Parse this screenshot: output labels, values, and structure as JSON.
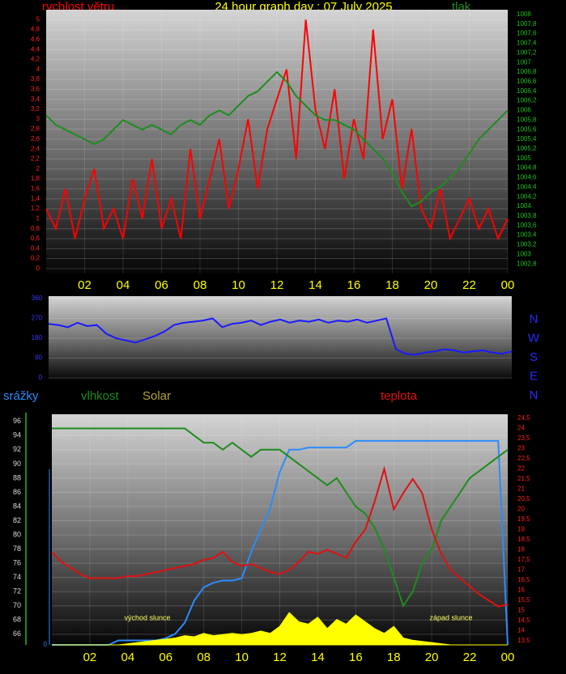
{
  "chart_data": [
    {
      "type": "line",
      "title": "24 hour graph day : 07 July 2025",
      "x": [
        0,
        0.5,
        1,
        1.5,
        2,
        2.5,
        3,
        3.5,
        4,
        4.5,
        5,
        5.5,
        6,
        6.5,
        7,
        7.5,
        8,
        8.5,
        9,
        9.5,
        10,
        10.5,
        11,
        11.5,
        12,
        12.5,
        13,
        13.5,
        14,
        14.5,
        15,
        15.5,
        16,
        16.5,
        17,
        17.5,
        18,
        18.5,
        19,
        19.5,
        20,
        20.5,
        21,
        21.5,
        22,
        22.5,
        23,
        23.5,
        24
      ],
      "xlim": [
        0,
        24
      ],
      "xticks": [
        {
          "value": 2,
          "label": "02"
        },
        {
          "value": 4,
          "label": "04"
        },
        {
          "value": 6,
          "label": "06"
        },
        {
          "value": 8,
          "label": "08"
        },
        10,
        12,
        14,
        16,
        18,
        20,
        22,
        {
          "value": 24,
          "label": "00"
        }
      ],
      "ylim": [
        -0.1,
        5.2
      ],
      "yticks": [
        0,
        {
          "value": 0.2,
          "label": "0,2"
        },
        {
          "value": 0.4,
          "label": "0,4"
        },
        {
          "value": 0.6,
          "label": "0,6"
        },
        {
          "value": 0.8,
          "label": "0,8"
        },
        1,
        {
          "value": 1.2,
          "label": "1,2"
        },
        {
          "value": 1.4,
          "label": "1,4"
        },
        {
          "value": 1.6,
          "label": "1,6"
        },
        {
          "value": 1.8,
          "label": "1,8"
        },
        2,
        {
          "value": 2.2,
          "label": "2,2"
        },
        {
          "value": 2.4,
          "label": "2,4"
        },
        {
          "value": 2.6,
          "label": "2,6"
        },
        {
          "value": 2.8,
          "label": "2,8"
        },
        3,
        {
          "value": 3.2,
          "label": "3,2"
        },
        {
          "value": 3.4,
          "label": "3,4"
        },
        {
          "value": 3.6,
          "label": "3,6"
        },
        {
          "value": 3.8,
          "label": "3,8"
        },
        4,
        {
          "value": 4.2,
          "label": "4,2"
        },
        {
          "value": 4.4,
          "label": "4,4"
        },
        {
          "value": 4.6,
          "label": "4,6"
        },
        {
          "value": 4.8,
          "label": "4,8"
        },
        5
      ],
      "y2lim": [
        1002.6,
        1008.1
      ],
      "y2ticks": [
        {
          "value": 1002.8,
          "label": "1002,8"
        },
        1003,
        {
          "value": 1003.2,
          "label": "1003,2"
        },
        {
          "value": 1003.4,
          "label": "1003,4"
        },
        {
          "value": 1003.6,
          "label": "1003,6"
        },
        {
          "value": 1003.8,
          "label": "1003,8"
        },
        1004,
        {
          "value": 1004.2,
          "label": "1004,2"
        },
        {
          "value": 1004.4,
          "label": "1004,4"
        },
        {
          "value": 1004.6,
          "label": "1004,6"
        },
        {
          "value": 1004.8,
          "label": "1004,8"
        },
        1005,
        {
          "value": 1005.2,
          "label": "1005,2"
        },
        {
          "value": 1005.4,
          "label": "1005,4"
        },
        {
          "value": 1005.6,
          "label": "1005,6"
        },
        {
          "value": 1005.8,
          "label": "1005,8"
        },
        1006,
        {
          "value": 1006.2,
          "label": "1006,2"
        },
        {
          "value": 1006.4,
          "label": "1006,4"
        },
        {
          "value": 1006.6,
          "label": "1006,6"
        },
        {
          "value": 1006.8,
          "label": "1006,8"
        },
        1007,
        {
          "value": 1007.2,
          "label": "1007,2"
        },
        {
          "value": 1007.4,
          "label": "1007,4"
        },
        {
          "value": 1007.6,
          "label": "1007,6"
        },
        {
          "value": 1007.8,
          "label": "1007,8"
        },
        1008
      ],
      "grid": true,
      "series": [
        {
          "name": "rychlost větru",
          "color": "#ff0000",
          "values": [
            1.2,
            0.8,
            1.6,
            0.6,
            1.4,
            2.0,
            0.8,
            1.2,
            0.6,
            1.8,
            1.0,
            2.2,
            0.8,
            1.4,
            0.6,
            2.4,
            1.0,
            1.8,
            2.6,
            1.2,
            2.0,
            3.0,
            1.6,
            2.8,
            3.4,
            4.0,
            2.2,
            5.0,
            3.2,
            2.4,
            3.6,
            1.8,
            3.0,
            2.2,
            4.8,
            2.6,
            3.4,
            1.6,
            2.8,
            1.2,
            0.8,
            1.6,
            0.6,
            1.0,
            1.4,
            0.8,
            1.2,
            0.6,
            1.0
          ]
        },
        {
          "name": "tlak",
          "color": "#1e8c1e",
          "axis": "y2",
          "values": [
            1005.9,
            1005.7,
            1005.6,
            1005.5,
            1005.4,
            1005.3,
            1005.4,
            1005.6,
            1005.8,
            1005.7,
            1005.6,
            1005.7,
            1005.6,
            1005.5,
            1005.7,
            1005.8,
            1005.7,
            1005.9,
            1006.0,
            1005.9,
            1006.1,
            1006.3,
            1006.4,
            1006.6,
            1006.8,
            1006.6,
            1006.3,
            1006.1,
            1005.9,
            1005.8,
            1005.8,
            1005.7,
            1005.6,
            1005.4,
            1005.2,
            1005.0,
            1004.7,
            1004.3,
            1004.0,
            1004.1,
            1004.3,
            1004.4,
            1004.6,
            1004.8,
            1005.1,
            1005.4,
            1005.6,
            1005.8,
            1006.0
          ]
        }
      ]
    },
    {
      "type": "line",
      "x": [
        0,
        0.5,
        1,
        1.5,
        2,
        2.5,
        3,
        3.5,
        4,
        4.5,
        5,
        5.5,
        6,
        6.5,
        7,
        7.5,
        8,
        8.5,
        9,
        9.5,
        10,
        10.5,
        11,
        11.5,
        12,
        12.5,
        13,
        13.5,
        14,
        14.5,
        15,
        15.5,
        16,
        16.5,
        17,
        17.5,
        18,
        18.5,
        19,
        19.5,
        20,
        20.5,
        21,
        21.5,
        22,
        22.5,
        23,
        23.5,
        24
      ],
      "xlim": [
        0,
        24
      ],
      "ylim": [
        -11,
        371
      ],
      "yticks": [
        0,
        90,
        180,
        270,
        360
      ],
      "grid": true,
      "compass": [
        "N",
        "W",
        "S",
        "E",
        "N"
      ],
      "series": [
        {
          "color": "#1a1aff",
          "values": [
            245,
            240,
            230,
            250,
            235,
            240,
            200,
            180,
            170,
            160,
            175,
            190,
            210,
            240,
            250,
            255,
            260,
            270,
            230,
            245,
            250,
            260,
            240,
            255,
            265,
            250,
            260,
            255,
            265,
            250,
            260,
            255,
            265,
            250,
            260,
            270,
            130,
            110,
            105,
            115,
            120,
            130,
            125,
            115,
            120,
            125,
            115,
            110,
            120
          ]
        }
      ]
    },
    {
      "type": "line",
      "x": [
        0,
        0.5,
        1,
        1.5,
        2,
        2.5,
        3,
        3.5,
        4,
        4.5,
        5,
        5.5,
        6,
        6.5,
        7,
        7.5,
        8,
        8.5,
        9,
        9.5,
        10,
        10.5,
        11,
        11.5,
        12,
        12.5,
        13,
        13.5,
        14,
        14.5,
        15,
        15.5,
        16,
        16.5,
        17,
        17.5,
        18,
        18.5,
        19,
        19.5,
        20,
        20.5,
        21,
        21.5,
        22,
        22.5,
        23,
        23.5,
        24
      ],
      "xlim": [
        0,
        24
      ],
      "xticks": [
        {
          "value": 2,
          "label": "02"
        },
        {
          "value": 4,
          "label": "04"
        },
        {
          "value": 6,
          "label": "06"
        },
        {
          "value": 8,
          "label": "08"
        },
        10,
        12,
        14,
        16,
        18,
        20,
        22,
        {
          "value": 24,
          "label": "00"
        }
      ],
      "ylim": [
        64.5,
        97
      ],
      "yticks": [
        66,
        68,
        70,
        72,
        74,
        76,
        78,
        80,
        82,
        84,
        86,
        88,
        90,
        92,
        94,
        96
      ],
      "y2lim": [
        13.3,
        24.7
      ],
      "y2ticks": [
        {
          "value": 13.5,
          "label": "13,5"
        },
        14,
        {
          "value": 14.5,
          "label": "14,5"
        },
        15,
        {
          "value": 15.5,
          "label": "15,5"
        },
        16,
        {
          "value": 16.5,
          "label": "16,5"
        },
        17,
        {
          "value": 17.5,
          "label": "17,5"
        },
        18,
        {
          "value": 18.5,
          "label": "18,5"
        },
        19,
        {
          "value": 19.5,
          "label": "19,5"
        },
        20,
        {
          "value": 20.5,
          "label": "20,5"
        },
        21,
        {
          "value": 21.5,
          "label": "21,5"
        },
        22,
        {
          "value": 22.5,
          "label": "22,5"
        },
        23,
        {
          "value": 23.5,
          "label": "23,5"
        },
        24,
        {
          "value": 24.5,
          "label": "24,5"
        }
      ],
      "y3lim": [
        0,
        10.4
      ],
      "y3ticks": [
        0
      ],
      "y4lim": [
        0,
        100
      ],
      "grid": true,
      "annotations": [
        "východ slunce",
        "západ slunce"
      ],
      "series": [
        {
          "name": "srážky",
          "color": "#2a8cff",
          "axis": "y3",
          "values": [
            0,
            0,
            0,
            0,
            0,
            0,
            0,
            0.2,
            0.2,
            0.2,
            0.2,
            0.2,
            0.3,
            0.5,
            1.0,
            2.0,
            2.6,
            2.8,
            2.9,
            2.9,
            3.0,
            4.2,
            5.2,
            6.2,
            7.8,
            8.8,
            8.8,
            8.9,
            8.9,
            8.9,
            8.9,
            8.9,
            9.2,
            9.2,
            9.2,
            9.2,
            9.2,
            9.2,
            9.2,
            9.2,
            9.2,
            9.2,
            9.2,
            9.2,
            9.2,
            9.2,
            9.2,
            9.2,
            0
          ]
        },
        {
          "name": "vlhkost",
          "color": "#1e8c1e",
          "values": [
            95,
            95,
            95,
            95,
            95,
            95,
            95,
            95,
            95,
            95,
            95,
            95,
            95,
            95,
            95,
            94,
            93,
            93,
            92,
            93,
            92,
            91,
            92,
            92,
            92,
            91,
            90,
            89,
            88,
            87,
            88,
            86,
            84,
            83,
            81,
            78,
            74,
            70,
            72,
            76,
            78,
            82,
            84,
            86,
            88,
            89,
            90,
            91,
            92
          ]
        },
        {
          "name": "Solar",
          "color": "#b4a532",
          "fillcolor": "#ffff00",
          "axis": "y4",
          "area": true,
          "values": [
            0,
            0,
            0,
            0,
            0,
            0,
            0,
            0,
            0.5,
            1,
            1.5,
            2,
            2.5,
            3,
            4,
            3.5,
            5,
            4,
            4.5,
            5,
            4.5,
            5,
            6,
            5,
            8,
            14,
            10,
            9,
            12,
            7,
            11,
            9,
            13,
            10,
            7,
            5,
            8,
            3,
            2,
            1.5,
            1,
            0.5,
            0,
            0,
            0,
            0,
            0,
            0,
            0
          ]
        },
        {
          "name": "teplota",
          "color": "#e01010",
          "axis": "y2",
          "values": [
            17.9,
            17.4,
            17.1,
            16.8,
            16.6,
            16.6,
            16.6,
            16.6,
            16.7,
            16.7,
            16.8,
            16.9,
            17.0,
            17.1,
            17.2,
            17.3,
            17.5,
            17.6,
            17.9,
            17.4,
            17.2,
            17.3,
            17.1,
            16.9,
            16.8,
            17.0,
            17.4,
            17.9,
            17.8,
            18.0,
            17.8,
            17.6,
            18.4,
            19.0,
            20.4,
            22.0,
            20.0,
            20.8,
            21.5,
            20.8,
            19.0,
            17.8,
            17.0,
            16.6,
            16.2,
            15.8,
            15.5,
            15.2,
            15.3
          ]
        }
      ]
    }
  ]
}
